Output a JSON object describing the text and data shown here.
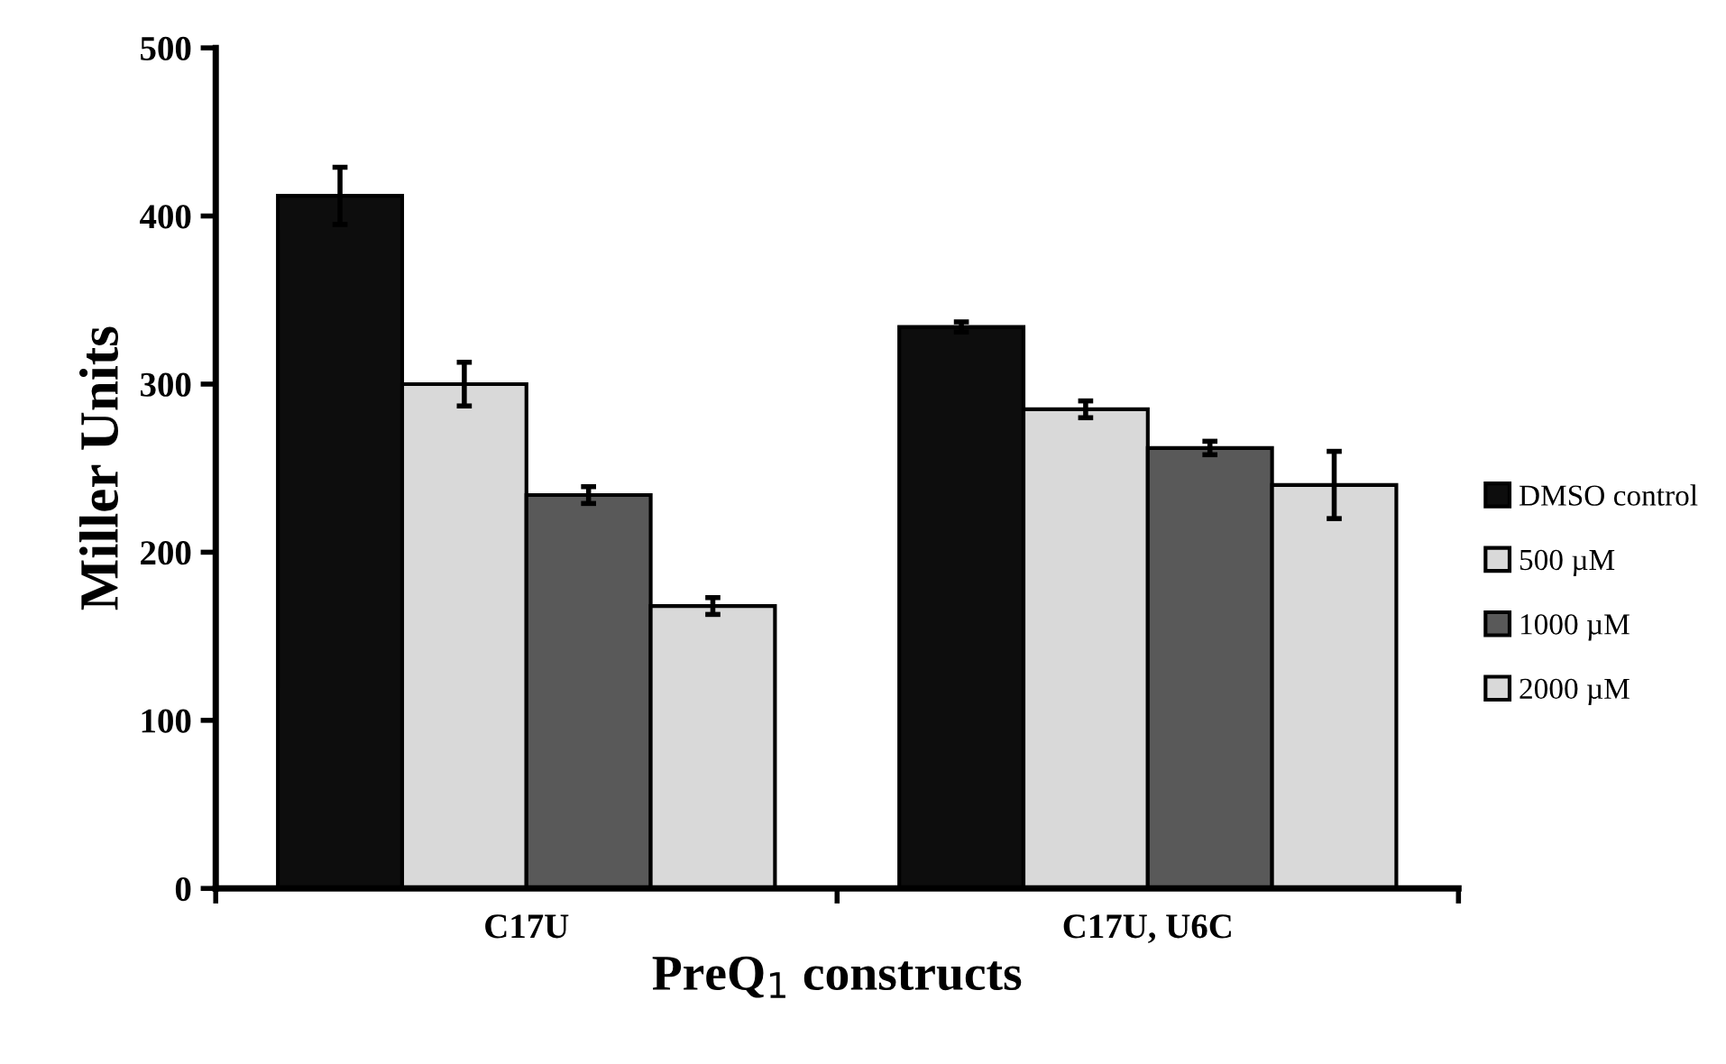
{
  "chart_data": {
    "type": "bar",
    "xlabel": "PreQ$_{1}$ constructs",
    "ylabel": "Miller Units",
    "categories": [
      "C17U",
      "C17U, U6C"
    ],
    "series": [
      {
        "name": "DMSO control",
        "color": "#0d0d0d",
        "values": [
          412,
          334
        ],
        "errors": [
          17,
          3
        ]
      },
      {
        "name": "500 µM",
        "color": "#d9d9d9",
        "values": [
          300,
          285
        ],
        "errors": [
          13,
          5
        ]
      },
      {
        "name": "1000 µM",
        "color": "#595959",
        "values": [
          234,
          262
        ],
        "errors": [
          5,
          4
        ]
      },
      {
        "name": "2000 µM",
        "color": "#d9d9d9",
        "values": [
          168,
          240
        ],
        "errors": [
          5,
          20
        ]
      }
    ],
    "ylim": [
      0,
      500
    ],
    "yticks": [
      0,
      100,
      200,
      300,
      400,
      500
    ],
    "grid": false,
    "legend": "right"
  }
}
